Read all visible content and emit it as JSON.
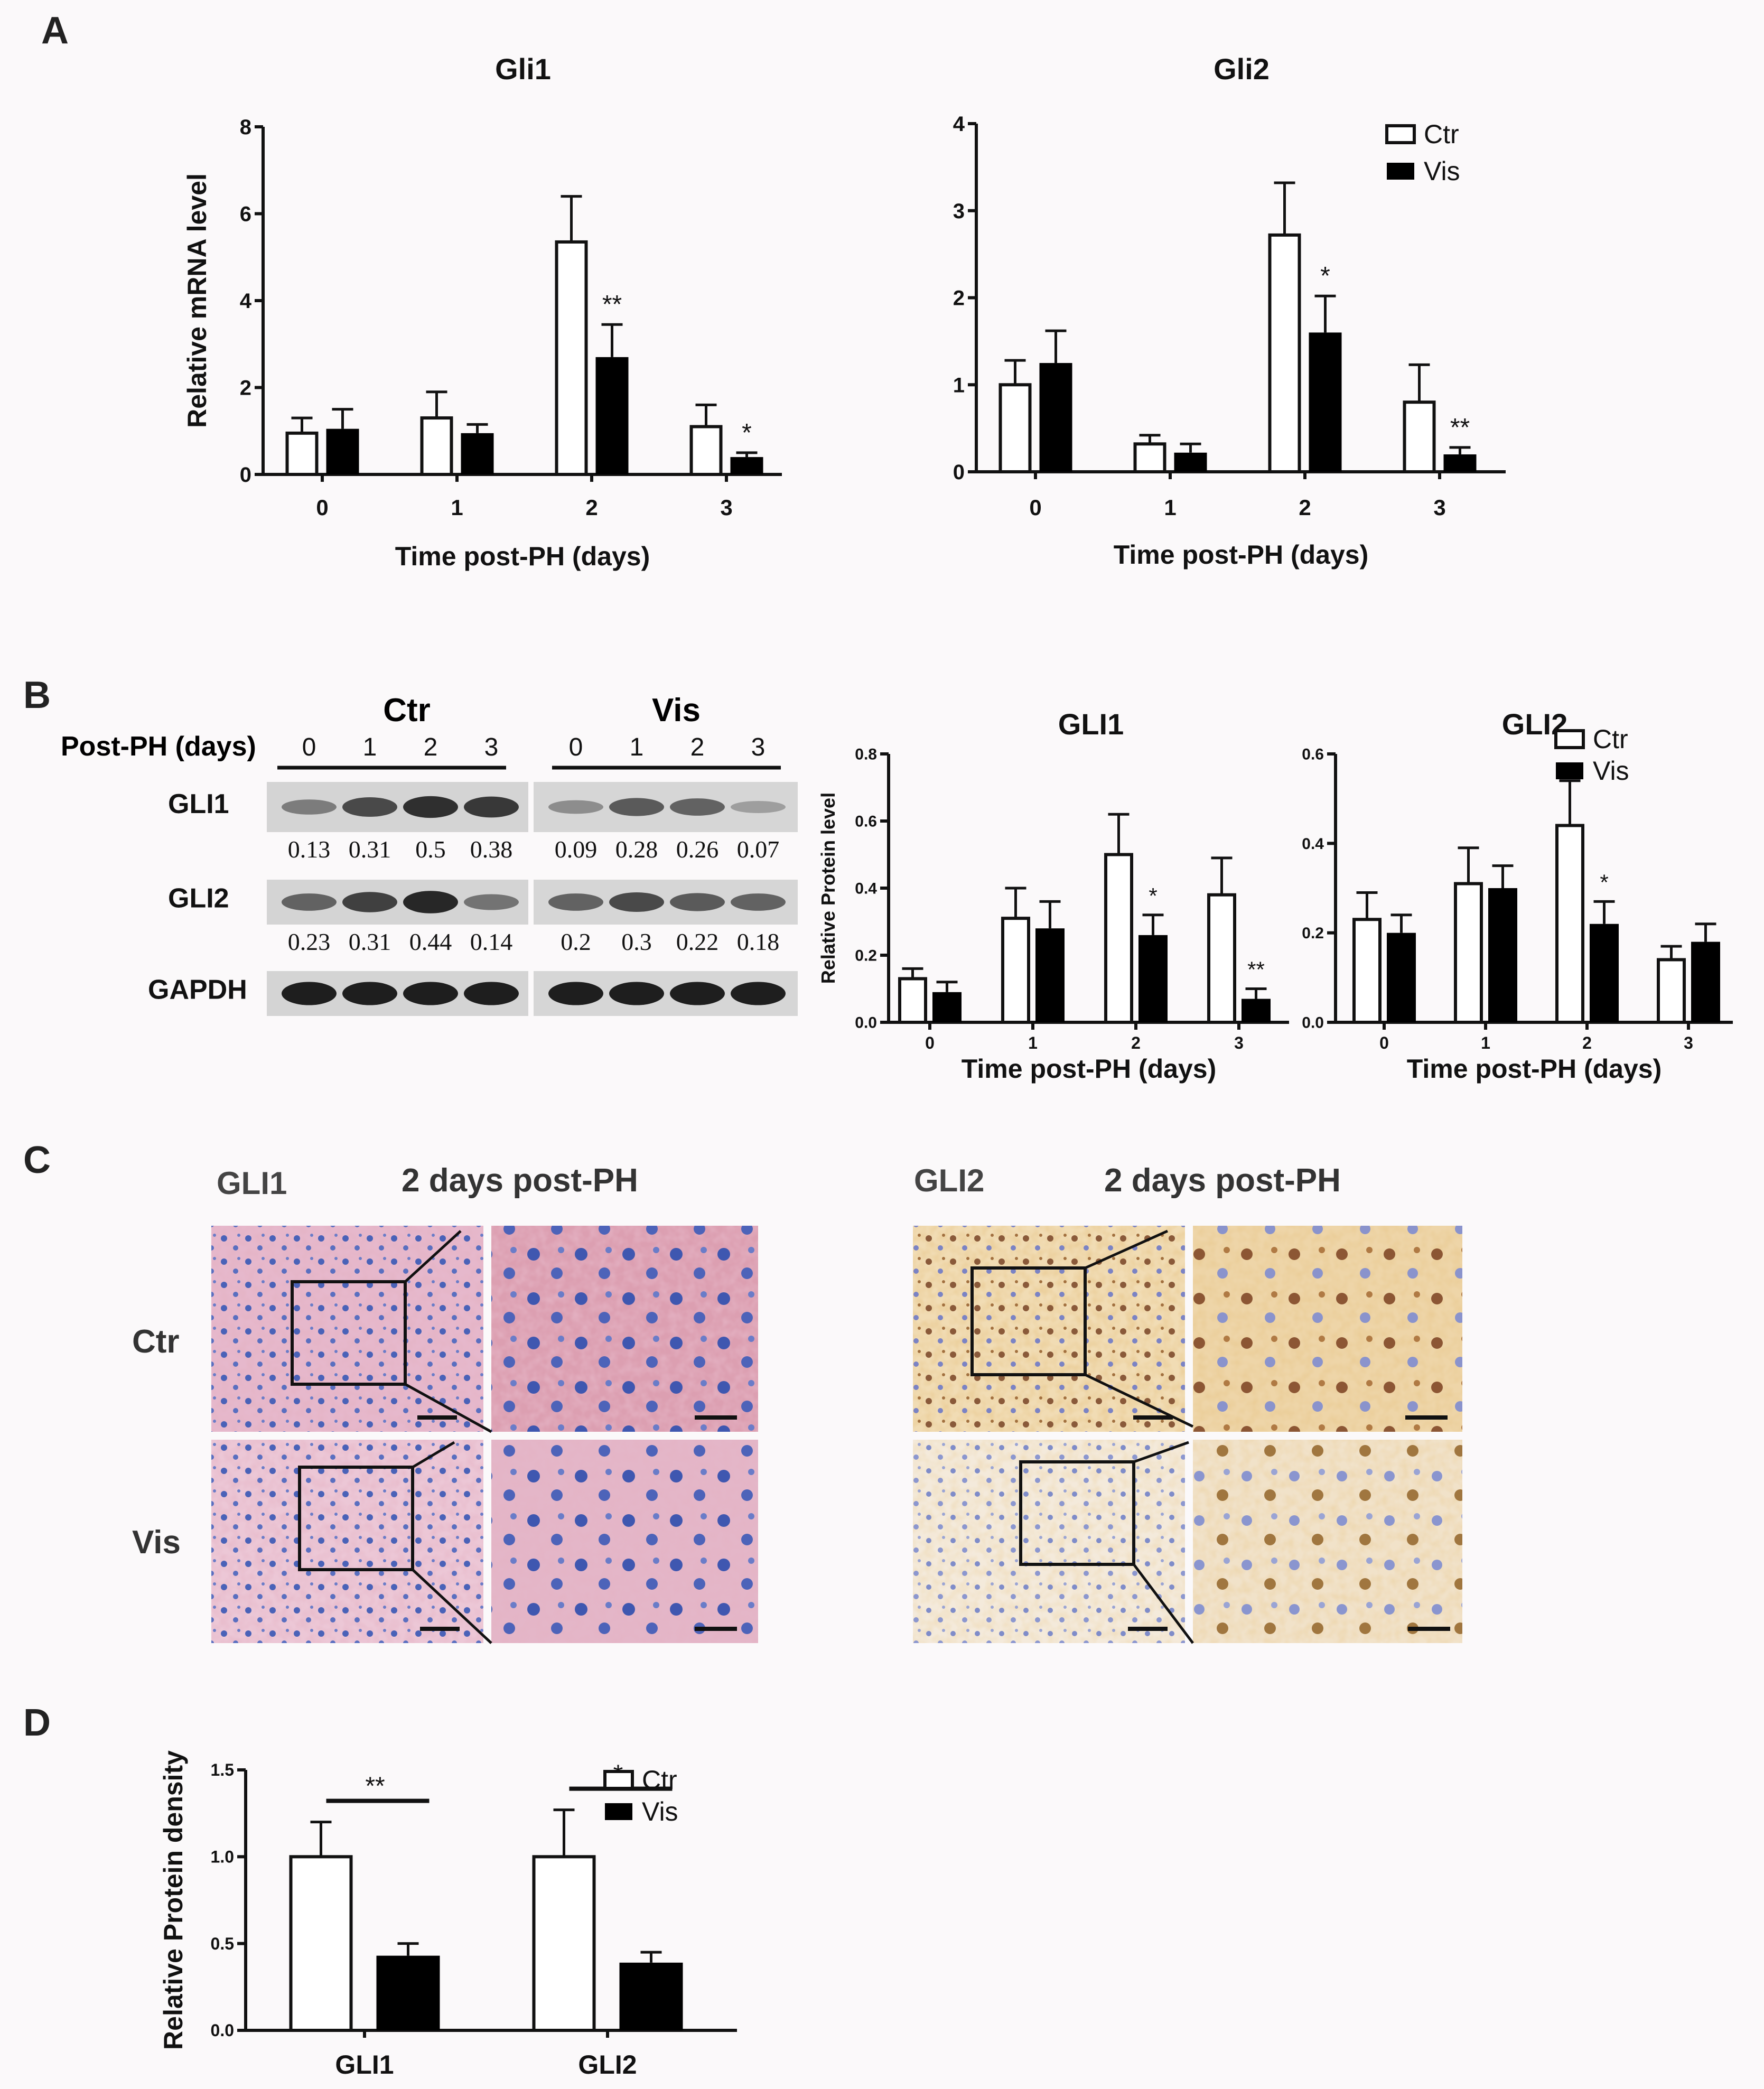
{
  "panels": [
    "A",
    "B",
    "C",
    "D"
  ],
  "legend": {
    "ctr": "Ctr",
    "vis": "Vis"
  },
  "chart_data": [
    {
      "id": "A1",
      "type": "bar",
      "title": "Gli1",
      "xlabel": "Time post-PH (days)",
      "ylabel": "Relative mRNA level",
      "categories": [
        "0",
        "1",
        "2",
        "3"
      ],
      "ylim": [
        0,
        8
      ],
      "yticks": [
        "0",
        "2",
        "4",
        "6",
        "8"
      ],
      "series": [
        {
          "name": "Ctr",
          "values": [
            0.95,
            1.3,
            5.35,
            1.1
          ],
          "errors": [
            0.35,
            0.6,
            1.05,
            0.5
          ]
        },
        {
          "name": "Vis",
          "values": [
            1.05,
            0.95,
            2.7,
            0.4
          ],
          "errors": [
            0.45,
            0.2,
            0.75,
            0.1
          ]
        }
      ],
      "annotations": [
        {
          "category": 2,
          "series": 1,
          "text": "**"
        },
        {
          "category": 3,
          "series": 1,
          "text": "*"
        }
      ],
      "legend": false
    },
    {
      "id": "A2",
      "type": "bar",
      "title": "Gli2",
      "xlabel": "Time post-PH (days)",
      "ylabel": "",
      "categories": [
        "0",
        "1",
        "2",
        "3"
      ],
      "ylim": [
        0,
        4
      ],
      "yticks": [
        "0",
        "1",
        "2",
        "3",
        "4"
      ],
      "series": [
        {
          "name": "Ctr",
          "values": [
            1.0,
            0.32,
            2.72,
            0.8
          ],
          "errors": [
            0.28,
            0.1,
            0.6,
            0.43
          ]
        },
        {
          "name": "Vis",
          "values": [
            1.25,
            0.22,
            1.6,
            0.2
          ],
          "errors": [
            0.37,
            0.1,
            0.42,
            0.08
          ]
        }
      ],
      "annotations": [
        {
          "category": 2,
          "series": 1,
          "text": "*"
        },
        {
          "category": 3,
          "series": 1,
          "text": "**"
        }
      ],
      "legend": true,
      "legend_position": "top-right"
    },
    {
      "id": "B1",
      "type": "bar",
      "title": "GLI1",
      "xlabel": "Time post-PH (days)",
      "ylabel": "Relative Protein level",
      "categories": [
        "0",
        "1",
        "2",
        "3"
      ],
      "ylim": [
        0,
        0.8
      ],
      "yticks": [
        "0.0",
        "0.2",
        "0.4",
        "0.6",
        "0.8"
      ],
      "series": [
        {
          "name": "Ctr",
          "values": [
            0.13,
            0.31,
            0.5,
            0.38
          ],
          "errors": [
            0.03,
            0.09,
            0.12,
            0.11
          ]
        },
        {
          "name": "Vis",
          "values": [
            0.09,
            0.28,
            0.26,
            0.07
          ],
          "errors": [
            0.03,
            0.08,
            0.06,
            0.03
          ]
        }
      ],
      "annotations": [
        {
          "category": 2,
          "series": 1,
          "text": "*"
        },
        {
          "category": 3,
          "series": 1,
          "text": "**"
        }
      ],
      "legend": false
    },
    {
      "id": "B2",
      "type": "bar",
      "title": "GLI2",
      "xlabel": "Time post-PH (days)",
      "ylabel": "",
      "categories": [
        "0",
        "1",
        "2",
        "3"
      ],
      "ylim": [
        0,
        0.6
      ],
      "yticks": [
        "0.0",
        "0.2",
        "0.4",
        "0.6"
      ],
      "series": [
        {
          "name": "Ctr",
          "values": [
            0.23,
            0.31,
            0.44,
            0.14
          ],
          "errors": [
            0.06,
            0.08,
            0.1,
            0.03
          ]
        },
        {
          "name": "Vis",
          "values": [
            0.2,
            0.3,
            0.22,
            0.18
          ],
          "errors": [
            0.04,
            0.05,
            0.05,
            0.04
          ]
        }
      ],
      "annotations": [
        {
          "category": 2,
          "series": 1,
          "text": "*"
        }
      ],
      "legend": true,
      "legend_position": "top-right"
    },
    {
      "id": "D",
      "type": "bar",
      "title": "",
      "xlabel": "",
      "ylabel": "Relative Protein density",
      "categories": [
        "GLI1",
        "GLI2"
      ],
      "ylim": [
        0,
        1.5
      ],
      "yticks": [
        "0.0",
        "0.5",
        "1.0",
        "1.5"
      ],
      "series": [
        {
          "name": "Ctr",
          "values": [
            1.0,
            1.0
          ],
          "errors": [
            0.2,
            0.27
          ]
        },
        {
          "name": "Vis",
          "values": [
            0.43,
            0.39
          ],
          "errors": [
            0.07,
            0.06
          ]
        }
      ],
      "significance": [
        {
          "category": 0,
          "text": "**"
        },
        {
          "category": 1,
          "text": "*"
        }
      ],
      "legend": true,
      "legend_position": "top-right"
    }
  ],
  "blot": {
    "ctr_label": "Ctr",
    "vis_label": "Vis",
    "axis_label": "Post-PH (days)",
    "lanes": [
      "0",
      "1",
      "2",
      "3",
      "0",
      "1",
      "2",
      "3"
    ],
    "rows": [
      {
        "name": "GLI1",
        "values": [
          "0.13",
          "0.31",
          "0.5",
          "0.38",
          "0.09",
          "0.28",
          "0.26",
          "0.07"
        ],
        "intensity": [
          0.45,
          0.75,
          0.9,
          0.85,
          0.35,
          0.65,
          0.6,
          0.25
        ]
      },
      {
        "name": "GLI2",
        "values": [
          "0.23",
          "0.31",
          "0.44",
          "0.14",
          "0.2",
          "0.3",
          "0.22",
          "0.18"
        ],
        "intensity": [
          0.6,
          0.8,
          0.95,
          0.5,
          0.6,
          0.75,
          0.65,
          0.6
        ]
      },
      {
        "name": "GAPDH",
        "values": [],
        "intensity": [
          1,
          1,
          1,
          1,
          1,
          1,
          1,
          1
        ]
      }
    ]
  },
  "ihc": {
    "gli1": {
      "label": "GLI1",
      "title": "2 days post-PH"
    },
    "gli2": {
      "label": "GLI2",
      "title": "2 days post-PH"
    },
    "rows": [
      "Ctr",
      "Vis"
    ]
  }
}
